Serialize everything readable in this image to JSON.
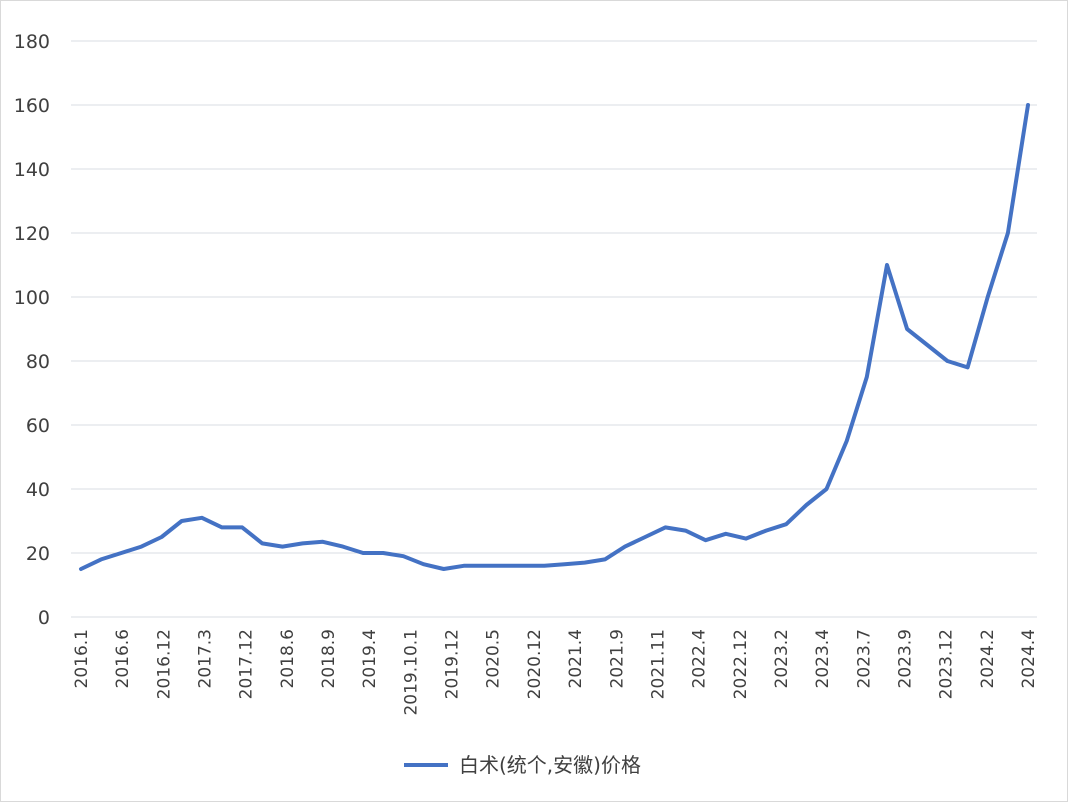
{
  "chart_data": {
    "type": "line",
    "title": "",
    "xlabel": "",
    "ylabel": "",
    "ylim": [
      0,
      180
    ],
    "y_ticks": [
      0,
      20,
      40,
      60,
      80,
      100,
      120,
      140,
      160,
      180
    ],
    "grid": true,
    "legend_position": "bottom",
    "x_tick_labels": [
      "2016.1",
      "2016.6",
      "2016.12",
      "2017.3",
      "2017.12",
      "2018.6",
      "2018.9",
      "2019.4",
      "2019.10.1",
      "2019.12",
      "2020.5",
      "2020.12",
      "2021.4",
      "2021.9",
      "2021.11",
      "2022.4",
      "2022.12",
      "2023.2",
      "2023.4",
      "2023.7",
      "2023.9",
      "2023.12",
      "2024.2",
      "2024.4"
    ],
    "series": [
      {
        "name": "白术(统个,安徽)价格",
        "color": "#4472c4",
        "values": [
          15,
          18,
          20,
          22,
          25,
          30,
          31,
          28,
          28,
          23,
          22,
          23,
          23.5,
          22,
          20,
          20,
          19,
          16.5,
          15,
          16,
          16,
          16,
          16,
          16,
          16.5,
          17,
          18,
          22,
          25,
          28,
          27,
          24,
          26,
          24.5,
          27,
          29,
          35,
          40,
          55,
          75,
          110,
          90,
          85,
          80,
          78,
          100,
          120,
          160
        ]
      }
    ]
  }
}
